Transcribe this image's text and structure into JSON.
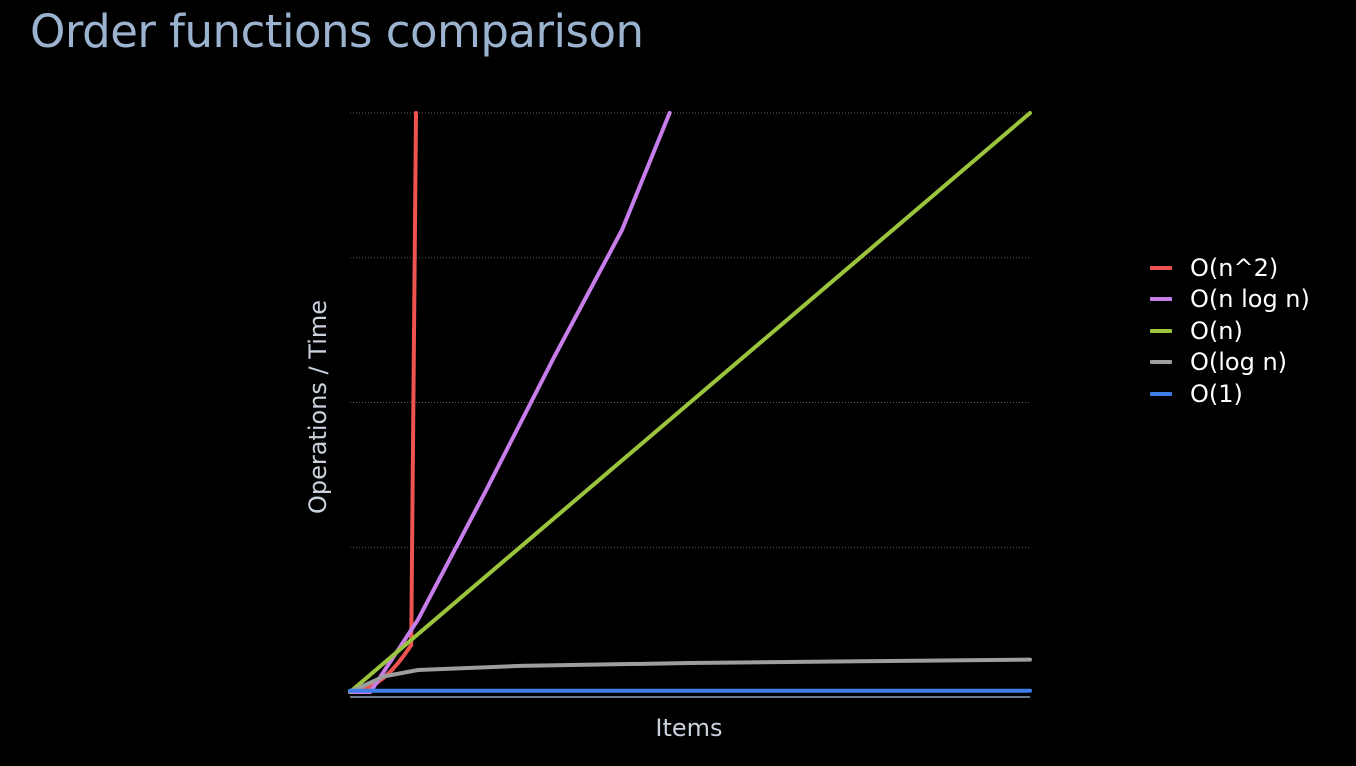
{
  "title": "Order functions comparison",
  "chart_data": {
    "type": "line",
    "title": "",
    "xlabel": "Items",
    "ylabel": "Operations / Time",
    "grid": true,
    "legend_position": "right",
    "xlim": [
      0,
      100
    ],
    "ylim": [
      0,
      100
    ],
    "series": [
      {
        "name": "O(n^2)",
        "color": "#ef5350",
        "formula": "n^2",
        "x": [
          0,
          2,
          3,
          4,
          5,
          6,
          7,
          8,
          9,
          9.7
        ],
        "y": [
          0,
          0.4,
          0.9,
          1.6,
          2.5,
          3.6,
          4.9,
          6.4,
          8.1,
          100
        ]
      },
      {
        "name": "O(n log n)",
        "color": "#c77dea",
        "formula": "n log n",
        "x": [
          0,
          3,
          10,
          20,
          30,
          40,
          47
        ],
        "y": [
          0,
          0,
          12.5,
          34.8,
          57.8,
          79.8,
          100
        ]
      },
      {
        "name": "O(n)",
        "color": "#9bc53d",
        "formula": "n",
        "x": [
          0,
          25,
          50,
          75,
          100
        ],
        "y": [
          0,
          25,
          50,
          75,
          100
        ]
      },
      {
        "name": "O(log n)",
        "color": "#9e9e9e",
        "formula": "log n",
        "x": [
          0,
          5,
          10,
          25,
          50,
          75,
          100
        ],
        "y": [
          0,
          2.7,
          3.8,
          4.5,
          5.0,
          5.3,
          5.6
        ]
      },
      {
        "name": "O(1)",
        "color": "#3d7ee8",
        "formula": "1",
        "x": [
          0,
          100
        ],
        "y": [
          0.2,
          0.2
        ]
      }
    ]
  }
}
